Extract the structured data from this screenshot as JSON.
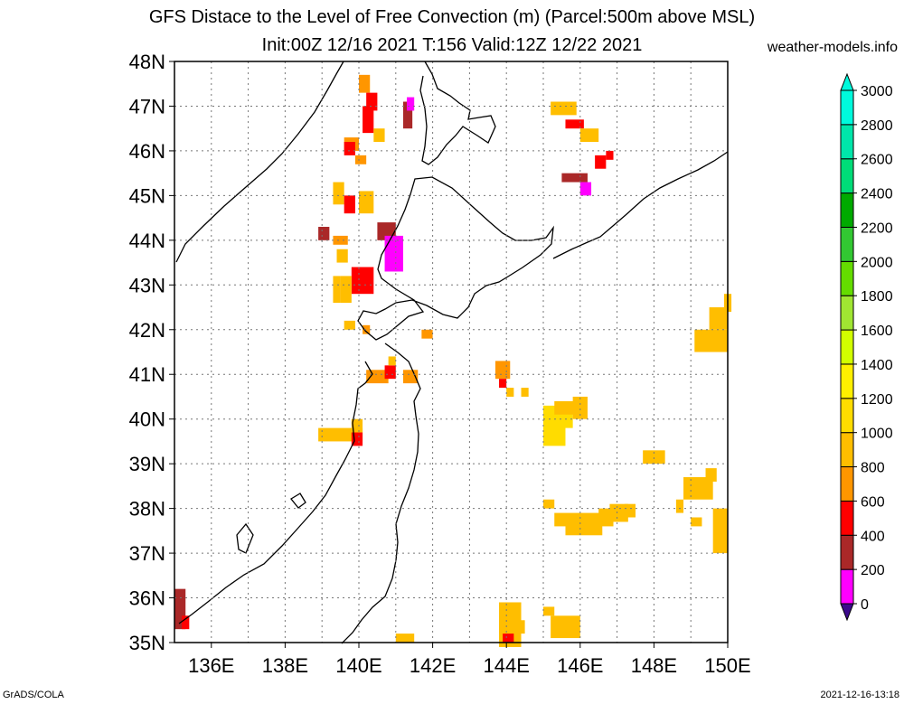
{
  "header": {
    "title_line1": "GFS Distace to the Level of Free Convection (m) (Parcel:500m above MSL)",
    "title_line2": "Init:00Z 12/16 2021 T:156 Valid:12Z 12/22 2021",
    "site": "weather-models.info"
  },
  "map": {
    "region": "Northern Japan / Hokkaido",
    "lon_range": [
      135,
      150
    ],
    "lat_range": [
      35,
      48
    ],
    "lat_labels": [
      "35N",
      "36N",
      "37N",
      "38N",
      "39N",
      "40N",
      "41N",
      "42N",
      "43N",
      "44N",
      "45N",
      "46N",
      "47N",
      "48N"
    ],
    "lon_labels": [
      "136E",
      "138E",
      "140E",
      "142E",
      "144E",
      "146E",
      "148E",
      "150E"
    ],
    "grid": "dotted"
  },
  "legend": {
    "labels": [
      "0",
      "200",
      "400",
      "600",
      "800",
      "1000",
      "1200",
      "1400",
      "1600",
      "1800",
      "2000",
      "2200",
      "2400",
      "2600",
      "2800",
      "3000"
    ],
    "colors": [
      "#3c0a8c",
      "#ff00ff",
      "#aa2828",
      "#ff0000",
      "#ff9600",
      "#ffbe00",
      "#ffdc00",
      "#fff000",
      "#d2ff00",
      "#a0e632",
      "#64dc00",
      "#32c832",
      "#00aa00",
      "#00dc78",
      "#00e6aa",
      "#00fadc"
    ]
  },
  "footer": {
    "left": "GrADS/COLA",
    "right": "2021-12-16-13:18"
  }
}
